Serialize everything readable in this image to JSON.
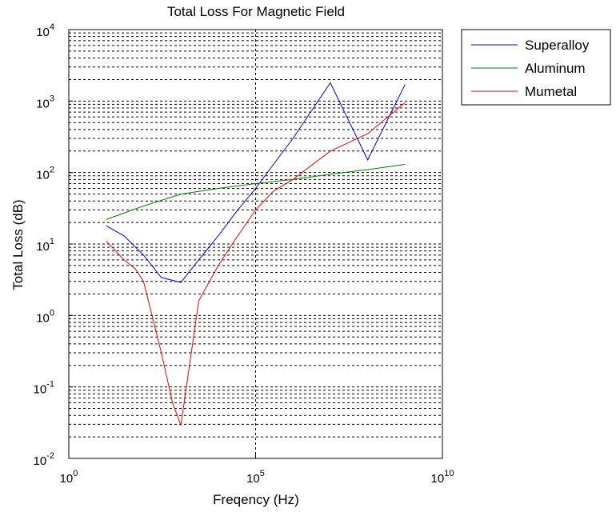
{
  "chart_data": {
    "type": "line",
    "title": "Total Loss For Magnetic Field",
    "xlabel": "Freqency (Hz)",
    "ylabel": "Total Loss (dB)",
    "x_scale": "log",
    "y_scale": "log",
    "xlim": [
      1,
      10000000000
    ],
    "ylim": [
      0.01,
      10000
    ],
    "x_ticks": [
      {
        "value": 1,
        "base": "10",
        "exp": "0"
      },
      {
        "value": 100000,
        "base": "10",
        "exp": "5"
      },
      {
        "value": 10000000000,
        "base": "10",
        "exp": "10"
      }
    ],
    "y_ticks": [
      {
        "value": 0.01,
        "base": "10",
        "exp": "-2"
      },
      {
        "value": 0.1,
        "base": "10",
        "exp": "-1"
      },
      {
        "value": 1,
        "base": "10",
        "exp": "0"
      },
      {
        "value": 10,
        "base": "10",
        "exp": "1"
      },
      {
        "value": 100,
        "base": "10",
        "exp": "2"
      },
      {
        "value": 1000,
        "base": "10",
        "exp": "3"
      },
      {
        "value": 10000,
        "base": "10",
        "exp": "4"
      }
    ],
    "grid": true,
    "legend_position": "outside-top-right",
    "series": [
      {
        "name": "Superalloy",
        "color": "#0000ff",
        "x": [
          10,
          30,
          100,
          300,
          1000,
          3000,
          10000,
          30000,
          100000,
          300000,
          1000000,
          10000000,
          100000000,
          1000000000
        ],
        "y": [
          18,
          13,
          7,
          3.4,
          2.9,
          6,
          13,
          28,
          60,
          130,
          300,
          1800,
          150,
          1700
        ]
      },
      {
        "name": "Aluminum",
        "color": "#008000",
        "x": [
          10,
          100,
          1000,
          10000,
          100000,
          1000000,
          10000000,
          100000000,
          1000000000
        ],
        "y": [
          22,
          34,
          50,
          60,
          70,
          80,
          95,
          110,
          130
        ]
      },
      {
        "name": "Mumetal",
        "color": "#ff0000",
        "x": [
          10,
          30,
          60,
          100,
          300,
          600,
          1000,
          3000,
          10000,
          30000,
          100000,
          300000,
          1000000,
          10000000,
          100000000,
          1000000000
        ],
        "y": [
          11,
          6,
          4.5,
          3,
          0.3,
          0.06,
          0.029,
          1.6,
          5,
          12,
          30,
          55,
          80,
          200,
          350,
          950
        ]
      }
    ]
  }
}
